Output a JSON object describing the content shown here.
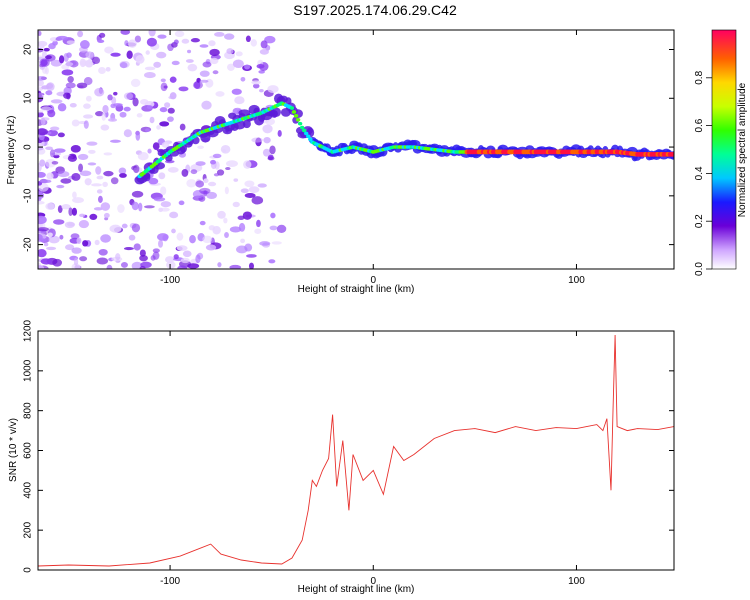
{
  "title": "S197.2025.174.06.29.C42",
  "chart_data": [
    {
      "type": "heatmap",
      "xlabel": "Height of straight line (km)",
      "ylabel": "Frequency (Hz)",
      "xlim": [
        -165,
        148
      ],
      "ylim": [
        -25,
        24
      ],
      "xticks": [
        -100,
        0,
        100
      ],
      "yticks": [
        -20,
        -10,
        0,
        10,
        20
      ],
      "colorbar": {
        "label": "Normalized spectral amplitude",
        "ticks": [
          0.0,
          0.2,
          0.4,
          0.6,
          0.8
        ],
        "range": [
          0,
          1
        ]
      },
      "ridge": {
        "x": [
          -115,
          -100,
          -85,
          -70,
          -55,
          -45,
          -40,
          -35,
          -30,
          -25,
          -20,
          -10,
          0,
          10,
          20,
          40,
          60,
          80,
          100,
          110,
          115,
          120,
          130,
          148
        ],
        "y": [
          -6,
          -1,
          3,
          5,
          7,
          9,
          8,
          4,
          1,
          0,
          -1,
          0,
          -1,
          0,
          0,
          -1,
          -1,
          -1,
          -1,
          -1,
          -1,
          -1,
          -1.5,
          -1.5
        ]
      }
    },
    {
      "type": "line",
      "xlabel": "Height of straight line (km)",
      "ylabel": "SNR (10 * v/v)",
      "xlim": [
        -165,
        148
      ],
      "ylim": [
        0,
        1200
      ],
      "xticks": [
        -100,
        0,
        100
      ],
      "yticks": [
        0,
        200,
        400,
        600,
        800,
        1000,
        1200
      ],
      "series": [
        {
          "color": "#e8322e",
          "x": [
            -165,
            -150,
            -130,
            -110,
            -95,
            -85,
            -80,
            -75,
            -65,
            -55,
            -45,
            -40,
            -35,
            -32,
            -30,
            -28,
            -25,
            -22,
            -20,
            -18,
            -15,
            -12,
            -10,
            -5,
            0,
            5,
            10,
            15,
            20,
            30,
            40,
            50,
            60,
            70,
            80,
            90,
            100,
            105,
            110,
            113,
            115,
            117,
            118,
            119,
            120,
            125,
            130,
            140,
            148
          ],
          "y": [
            20,
            25,
            20,
            35,
            70,
            110,
            130,
            80,
            50,
            35,
            30,
            60,
            150,
            300,
            450,
            420,
            500,
            560,
            780,
            420,
            650,
            300,
            580,
            450,
            500,
            380,
            620,
            550,
            580,
            660,
            700,
            710,
            690,
            720,
            700,
            715,
            710,
            720,
            730,
            700,
            760,
            400,
            800,
            1180,
            720,
            700,
            710,
            705,
            720
          ]
        }
      ]
    }
  ]
}
